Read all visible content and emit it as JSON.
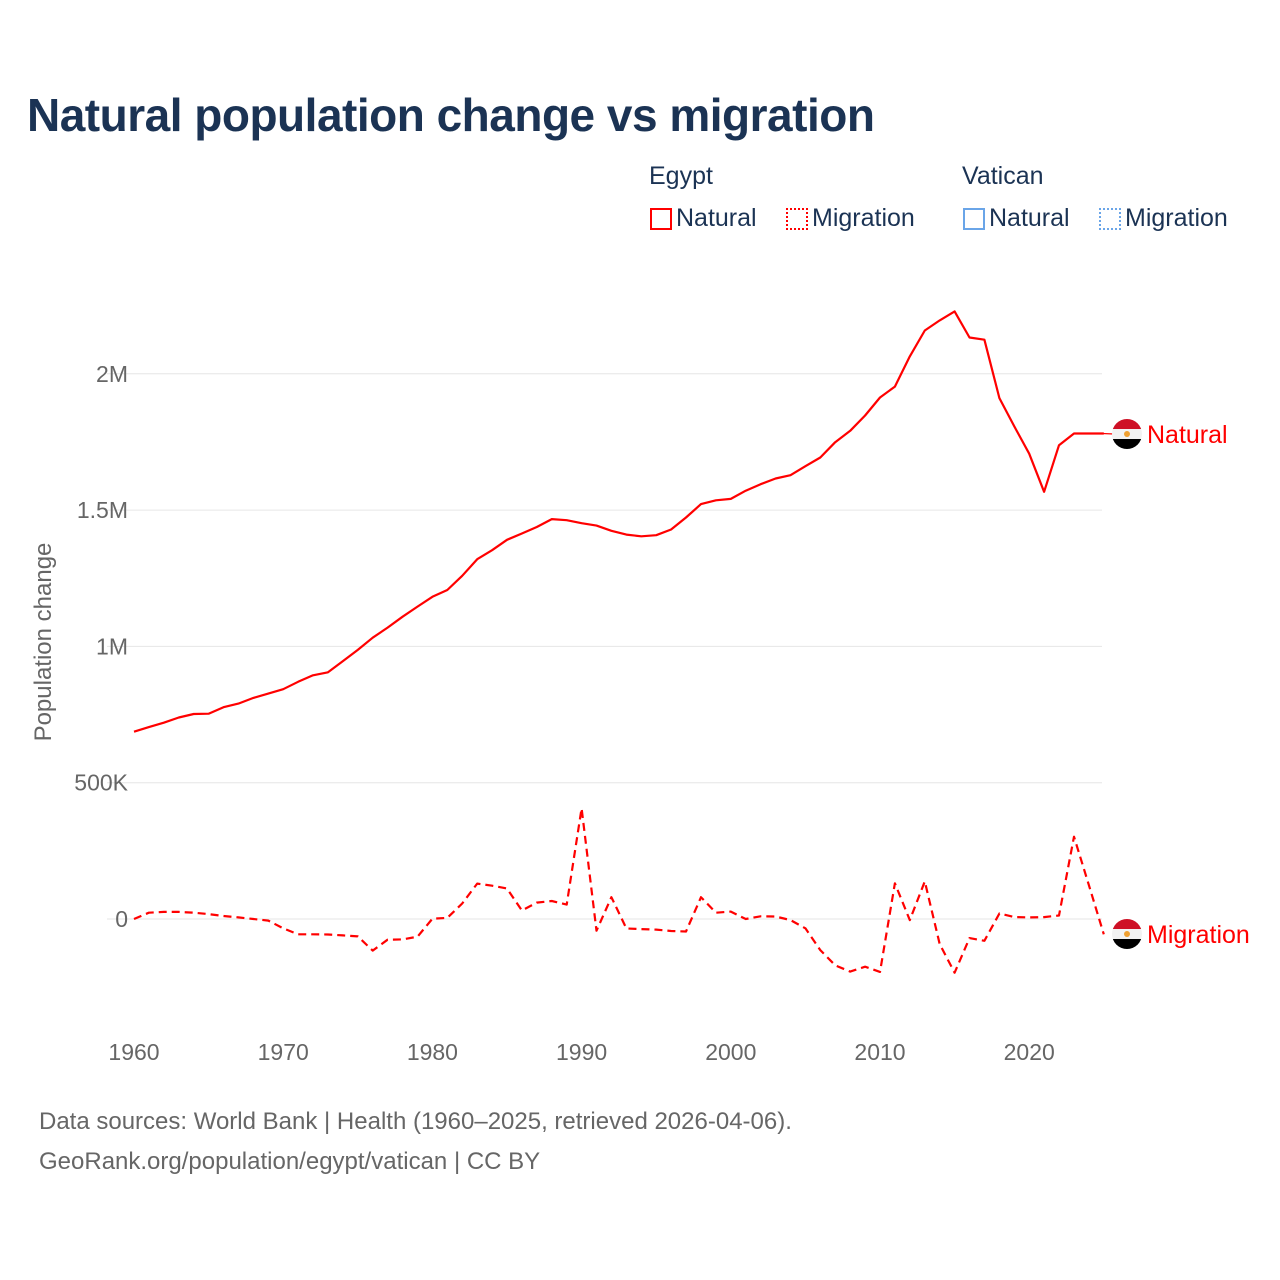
{
  "title": "Natural population change vs migration",
  "legend": {
    "groups": [
      {
        "name": "Egypt",
        "color": "#ff0000",
        "items": [
          "Natural",
          "Migration"
        ]
      },
      {
        "name": "Vatican",
        "color": "#4a90e2",
        "items": [
          "Natural",
          "Migration"
        ]
      }
    ]
  },
  "footer": {
    "line1": "Data sources: World Bank | Health (1960–2025, retrieved 2026-04-06).",
    "line2": "GeoRank.org/population/egypt/vatican | CC BY"
  },
  "chart_data": {
    "type": "line",
    "title": "Natural population change vs migration",
    "xlabel": "",
    "ylabel": "Population change",
    "xlim": [
      1960,
      2025
    ],
    "ylim": [
      -250000,
      2300000
    ],
    "yticks": [
      {
        "v": 0,
        "label": "0"
      },
      {
        "v": 500000,
        "label": "500K"
      },
      {
        "v": 1000000,
        "label": "1M"
      },
      {
        "v": 1500000,
        "label": "1.5M"
      },
      {
        "v": 2000000,
        "label": "2M"
      }
    ],
    "xticks": [
      1960,
      1970,
      1980,
      1990,
      2000,
      2010,
      2020
    ],
    "grid": true,
    "legend_position": "top-right",
    "x": [
      1960,
      1961,
      1962,
      1963,
      1964,
      1965,
      1966,
      1967,
      1968,
      1969,
      1970,
      1971,
      1972,
      1973,
      1974,
      1975,
      1976,
      1977,
      1978,
      1979,
      1980,
      1981,
      1982,
      1983,
      1984,
      1985,
      1986,
      1987,
      1988,
      1989,
      1990,
      1991,
      1992,
      1993,
      1994,
      1995,
      1996,
      1997,
      1998,
      1999,
      2000,
      2001,
      2002,
      2003,
      2004,
      2005,
      2006,
      2007,
      2008,
      2009,
      2010,
      2011,
      2012,
      2013,
      2014,
      2015,
      2016,
      2017,
      2018,
      2019,
      2020,
      2021,
      2022,
      2023,
      2024,
      2025
    ],
    "series": [
      {
        "name": "Egypt Natural",
        "end_label": "Natural",
        "color": "#ff0000",
        "dash": "solid",
        "values": [
          687000,
          704000,
          720000,
          739000,
          752000,
          753000,
          777000,
          790000,
          811000,
          827000,
          843000,
          870000,
          894000,
          905000,
          946000,
          987000,
          1032000,
          1069000,
          1109000,
          1146000,
          1182000,
          1207000,
          1259000,
          1320000,
          1353000,
          1391000,
          1414000,
          1438000,
          1467000,
          1463000,
          1452000,
          1443000,
          1424000,
          1410000,
          1404000,
          1408000,
          1429000,
          1473000,
          1522000,
          1536000,
          1541000,
          1571000,
          1595000,
          1616000,
          1628000,
          1661000,
          1693000,
          1749000,
          1791000,
          1847000,
          1913000,
          1953000,
          2064000,
          2159000,
          2196000,
          2229000,
          2133000,
          2125000,
          1911000,
          1807000,
          1707000,
          1567000,
          1738000,
          1781000,
          1781000,
          1781000
        ]
      },
      {
        "name": "Egypt Migration",
        "end_label": "Migration",
        "color": "#ff0000",
        "dash": "dashed",
        "values": [
          0,
          23000,
          26000,
          26000,
          23000,
          18000,
          11000,
          6000,
          0,
          -6000,
          -34000,
          -56000,
          -56000,
          -57000,
          -60000,
          -64000,
          -116000,
          -76000,
          -75000,
          -65000,
          1000,
          4000,
          57000,
          130000,
          122000,
          112000,
          31000,
          60000,
          66000,
          53000,
          406000,
          -43000,
          80000,
          -35000,
          -37000,
          -39000,
          -44000,
          -46000,
          80000,
          23000,
          27000,
          0,
          10000,
          9000,
          -4000,
          -34000,
          -114000,
          -170000,
          -193000,
          -175000,
          -194000,
          131000,
          -4000,
          138000,
          -92000,
          -197000,
          -70000,
          -80000,
          20000,
          7000,
          6000,
          7000,
          13000,
          302000,
          124000,
          -56000
        ]
      }
    ]
  }
}
